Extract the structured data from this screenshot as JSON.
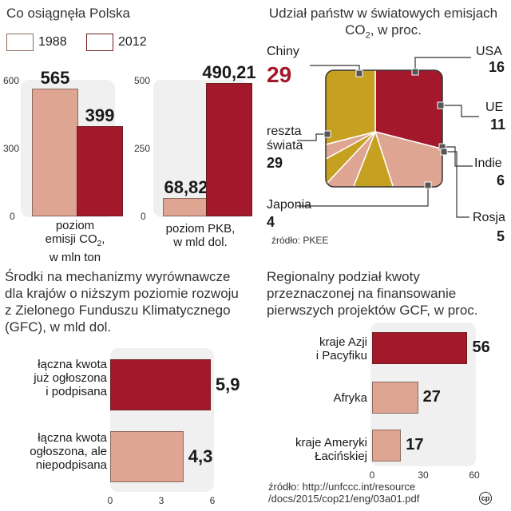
{
  "colors": {
    "c1988": "#dea592",
    "c2012": "#a3182b",
    "china": "#a3182b",
    "usa": "#dea592",
    "eu": "#c6a021",
    "india": "#dea592",
    "russia": "#c6a021",
    "japan": "#dea592",
    "rest": "#c6a021",
    "panel": "#f0f0f0"
  },
  "poland": {
    "title": "Co osiągnęła Polska",
    "legend": [
      "1988",
      "2012"
    ],
    "emissions": {
      "label1": "poziom",
      "label2": "emisji CO",
      "sub": "2",
      "label3": "w mln ton",
      "ticks": [
        "600",
        "300",
        "0"
      ]
    },
    "gdp": {
      "label1": "poziom PKB,",
      "label2": "w mld dol.",
      "ticks": [
        "500",
        "250",
        "0"
      ]
    }
  },
  "co2share": {
    "title1": "Udział państw w światowych emisjach",
    "title2": "CO",
    "sub": "2",
    "title3": ", w proc.",
    "source": "źródło: PKEE",
    "labels": {
      "china": "Chiny",
      "usa": "USA",
      "eu": "UE",
      "india": "Indie",
      "russia": "Rosja",
      "japan": "Japonia",
      "rest1": "reszta",
      "rest2": "świata"
    }
  },
  "gfc": {
    "title": [
      "Środki na mechanizmy wyrównawcze",
      "dla krajów o niższym poziomie rozwoju",
      "z Zielonego Funduszu Klimatycznego",
      "(GFC), w mld dol."
    ],
    "cat1": [
      "łączna kwota",
      "już ogłoszona",
      "i podpisana"
    ],
    "cat2": [
      "łączna kwota",
      "ogłoszona, ale",
      "niepodpisana"
    ]
  },
  "regional": {
    "title": [
      "Regionalny podział kwoty",
      "przeznaczonej na finansowanie",
      "pierwszych projektów GCF, w proc."
    ],
    "cat1": [
      "kraje Azji",
      "i Pacyfiku"
    ],
    "cat2": [
      "Afryka"
    ],
    "cat3": [
      "kraje Ameryki",
      "Łacińskiej"
    ],
    "source": [
      "źródło: http://unfccc.int/resource",
      "/docs/2015/cop21/eng/03a01.pdf"
    ]
  },
  "badge": "cp",
  "chart_data": [
    {
      "type": "bar",
      "categories": [
        "poziom emisji CO2, w mln ton"
      ],
      "series": [
        {
          "name": "1988",
          "values": [
            565
          ]
        },
        {
          "name": "2012",
          "values": [
            399
          ]
        }
      ],
      "ylim": [
        0,
        600
      ],
      "value_labels": [
        "565",
        "399"
      ]
    },
    {
      "type": "bar",
      "categories": [
        "poziom PKB, w mld dol."
      ],
      "series": [
        {
          "name": "1988",
          "values": [
            68.82
          ]
        },
        {
          "name": "2012",
          "values": [
            490.21
          ]
        }
      ],
      "ylim": [
        0,
        500
      ],
      "value_labels": [
        "68,82",
        "490,21"
      ]
    },
    {
      "type": "pie",
      "title": "Udział państw w światowych emisjach CO2, w proc.",
      "categories": [
        "Chiny",
        "USA",
        "UE",
        "Indie",
        "Rosja",
        "Japonia",
        "reszta świata"
      ],
      "values": [
        29,
        16,
        11,
        6,
        5,
        4,
        29
      ],
      "value_labels": [
        "29",
        "16",
        "11",
        "6",
        "5",
        "4",
        "29"
      ]
    },
    {
      "type": "bar",
      "orientation": "horizontal",
      "title": "Środki na mechanizmy wyrównawcze dla krajów o niższym poziomie rozwoju z Zielonego Funduszu Klimatycznego (GFC), w mld dol.",
      "categories": [
        "łączna kwota już ogłoszona i podpisana",
        "łączna kwota ogłoszona, ale niepodpisana"
      ],
      "values": [
        5.9,
        4.3
      ],
      "value_labels": [
        "5,9",
        "4,3"
      ],
      "xlim": [
        0,
        6
      ],
      "xticks": [
        "0",
        "3",
        "6"
      ]
    },
    {
      "type": "bar",
      "orientation": "horizontal",
      "title": "Regionalny podział kwoty przeznaczonej na finansowanie pierwszych projektów GCF, w proc.",
      "categories": [
        "kraje Azji i Pacyfiku",
        "Afryka",
        "kraje Ameryki Łacińskiej"
      ],
      "values": [
        56,
        27,
        17
      ],
      "value_labels": [
        "56",
        "27",
        "17"
      ],
      "xlim": [
        0,
        60
      ],
      "xticks": [
        "0",
        "30",
        "60"
      ]
    }
  ]
}
